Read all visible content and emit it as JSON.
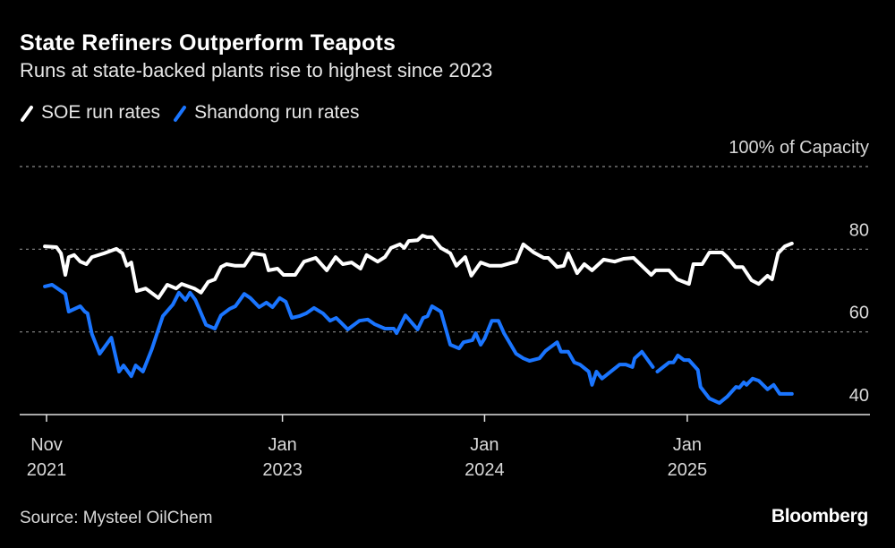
{
  "title": "State Refiners Outperform Teapots",
  "subtitle": "Runs at state-backed plants rise to highest since 2023",
  "source": "Source: Mysteel OilChem",
  "logo": "Bloomberg",
  "chart_data": {
    "type": "line",
    "title": "State Refiners Outperform Teapots",
    "ylabel": "100% of Capacity",
    "ylim": [
      40,
      100
    ],
    "y_ticks": [
      {
        "value": 100,
        "label": "100% of Capacity"
      },
      {
        "value": 80,
        "label": "80"
      },
      {
        "value": 60,
        "label": "60"
      },
      {
        "value": 40,
        "label": "40"
      }
    ],
    "x_ticks": [
      {
        "date": "2021-11-01",
        "line1": "Nov",
        "line2": "2021"
      },
      {
        "date": "2023-01-01",
        "line1": "Jan",
        "line2": "2023"
      },
      {
        "date": "2024-01-01",
        "line1": "Jan",
        "line2": "2024"
      },
      {
        "date": "2025-01-01",
        "line1": "Jan",
        "line2": "2025"
      }
    ],
    "xlim": [
      "2021-11-01",
      "2025-07-09"
    ],
    "grid": "horizontal dotted",
    "legend_position": "top-left",
    "series": [
      {
        "name": "SOE run rates",
        "color": "#ffffff",
        "points": [
          [
            "2021-10-29",
            80.7
          ],
          [
            "2021-11-19",
            80.5
          ],
          [
            "2021-11-27",
            79.0
          ],
          [
            "2021-12-05",
            73.8
          ],
          [
            "2021-12-11",
            78.1
          ],
          [
            "2021-12-21",
            78.6
          ],
          [
            "2022-01-01",
            77.0
          ],
          [
            "2022-01-12",
            76.4
          ],
          [
            "2022-01-22",
            78.1
          ],
          [
            "2022-02-13",
            79.0
          ],
          [
            "2022-03-07",
            80.1
          ],
          [
            "2022-03-18",
            79.0
          ],
          [
            "2022-03-26",
            76.0
          ],
          [
            "2022-04-03",
            76.8
          ],
          [
            "2022-04-13",
            69.9
          ],
          [
            "2022-04-29",
            70.5
          ],
          [
            "2022-05-22",
            68.2
          ],
          [
            "2022-06-07",
            71.4
          ],
          [
            "2022-06-23",
            70.5
          ],
          [
            "2022-07-03",
            71.6
          ],
          [
            "2022-07-26",
            70.5
          ],
          [
            "2022-08-07",
            69.5
          ],
          [
            "2022-08-20",
            72.1
          ],
          [
            "2022-09-01",
            72.7
          ],
          [
            "2022-09-12",
            75.7
          ],
          [
            "2022-09-22",
            76.4
          ],
          [
            "2022-10-08",
            76.0
          ],
          [
            "2022-10-24",
            76.0
          ],
          [
            "2022-11-08",
            79.0
          ],
          [
            "2022-11-29",
            78.6
          ],
          [
            "2022-12-07",
            74.9
          ],
          [
            "2022-12-23",
            75.3
          ],
          [
            "2023-01-03",
            73.8
          ],
          [
            "2023-01-24",
            73.8
          ],
          [
            "2023-02-09",
            77.0
          ],
          [
            "2023-03-02",
            77.9
          ],
          [
            "2023-03-22",
            74.9
          ],
          [
            "2023-04-07",
            78.1
          ],
          [
            "2023-04-20",
            76.4
          ],
          [
            "2023-05-06",
            76.8
          ],
          [
            "2023-05-22",
            75.3
          ],
          [
            "2023-06-02",
            78.6
          ],
          [
            "2023-06-22",
            77.0
          ],
          [
            "2023-07-05",
            78.1
          ],
          [
            "2023-07-16",
            80.3
          ],
          [
            "2023-08-01",
            81.2
          ],
          [
            "2023-08-09",
            80.3
          ],
          [
            "2023-08-17",
            82.0
          ],
          [
            "2023-09-02",
            82.2
          ],
          [
            "2023-09-11",
            83.3
          ],
          [
            "2023-09-19",
            82.9
          ],
          [
            "2023-09-28",
            82.9
          ],
          [
            "2023-10-14",
            80.3
          ],
          [
            "2023-10-31",
            79.0
          ],
          [
            "2023-11-11",
            76.0
          ],
          [
            "2023-11-27",
            78.1
          ],
          [
            "2023-12-08",
            73.6
          ],
          [
            "2023-12-25",
            76.8
          ],
          [
            "2024-01-10",
            76.0
          ],
          [
            "2024-01-31",
            76.0
          ],
          [
            "2024-02-27",
            77.0
          ],
          [
            "2024-03-11",
            81.2
          ],
          [
            "2024-03-30",
            79.2
          ],
          [
            "2024-04-17",
            77.9
          ],
          [
            "2024-04-25",
            77.9
          ],
          [
            "2024-05-11",
            75.7
          ],
          [
            "2024-05-23",
            76.0
          ],
          [
            "2024-05-31",
            79.0
          ],
          [
            "2024-06-16",
            74.2
          ],
          [
            "2024-06-29",
            76.4
          ],
          [
            "2024-07-13",
            74.9
          ],
          [
            "2024-08-03",
            77.5
          ],
          [
            "2024-08-23",
            77.0
          ],
          [
            "2024-09-08",
            77.7
          ],
          [
            "2024-09-26",
            77.9
          ],
          [
            "2024-10-28",
            73.8
          ],
          [
            "2024-11-05",
            74.9
          ],
          [
            "2024-11-29",
            74.9
          ],
          [
            "2024-12-14",
            72.7
          ],
          [
            "2025-01-04",
            71.6
          ],
          [
            "2025-01-12",
            76.4
          ],
          [
            "2025-01-28",
            76.4
          ],
          [
            "2025-02-10",
            79.2
          ],
          [
            "2025-03-05",
            79.2
          ],
          [
            "2025-03-14",
            78.1
          ],
          [
            "2025-03-29",
            75.7
          ],
          [
            "2025-04-11",
            75.7
          ],
          [
            "2025-04-27",
            72.5
          ],
          [
            "2025-05-10",
            71.6
          ],
          [
            "2025-05-26",
            73.6
          ],
          [
            "2025-06-03",
            72.7
          ],
          [
            "2025-06-14",
            79.0
          ],
          [
            "2025-06-26",
            80.7
          ],
          [
            "2025-07-09",
            81.4
          ]
        ]
      },
      {
        "name": "Shandong run rates",
        "color": "#1a75ff",
        "points": [
          [
            "2021-10-29",
            71.0
          ],
          [
            "2021-11-11",
            71.4
          ],
          [
            "2021-12-05",
            69.2
          ],
          [
            "2021-12-11",
            64.9
          ],
          [
            "2022-01-01",
            66.2
          ],
          [
            "2022-01-09",
            64.9
          ],
          [
            "2022-01-14",
            64.5
          ],
          [
            "2022-01-22",
            59.5
          ],
          [
            "2022-02-05",
            54.7
          ],
          [
            "2022-02-26",
            58.6
          ],
          [
            "2022-03-12",
            50.4
          ],
          [
            "2022-03-20",
            51.9
          ],
          [
            "2022-04-03",
            49.3
          ],
          [
            "2022-04-11",
            51.9
          ],
          [
            "2022-04-24",
            50.4
          ],
          [
            "2022-05-10",
            55.8
          ],
          [
            "2022-05-30",
            63.8
          ],
          [
            "2022-06-17",
            66.6
          ],
          [
            "2022-06-28",
            69.5
          ],
          [
            "2022-07-10",
            67.7
          ],
          [
            "2022-07-18",
            69.5
          ],
          [
            "2022-07-28",
            67.7
          ],
          [
            "2022-08-16",
            61.7
          ],
          [
            "2022-09-01",
            60.8
          ],
          [
            "2022-09-12",
            64.0
          ],
          [
            "2022-09-28",
            65.6
          ],
          [
            "2022-10-08",
            66.2
          ],
          [
            "2022-10-24",
            69.2
          ],
          [
            "2022-11-04",
            68.2
          ],
          [
            "2022-11-20",
            66.0
          ],
          [
            "2022-12-03",
            67.1
          ],
          [
            "2022-12-14",
            66.0
          ],
          [
            "2022-12-27",
            68.2
          ],
          [
            "2023-01-07",
            67.3
          ],
          [
            "2023-01-18",
            63.4
          ],
          [
            "2023-01-31",
            63.8
          ],
          [
            "2023-02-13",
            64.5
          ],
          [
            "2023-02-27",
            65.8
          ],
          [
            "2023-03-15",
            64.5
          ],
          [
            "2023-03-28",
            62.7
          ],
          [
            "2023-04-08",
            63.4
          ],
          [
            "2023-04-29",
            60.6
          ],
          [
            "2023-05-20",
            62.7
          ],
          [
            "2023-06-04",
            63.0
          ],
          [
            "2023-06-16",
            61.9
          ],
          [
            "2023-07-05",
            60.8
          ],
          [
            "2023-07-21",
            60.8
          ],
          [
            "2023-07-26",
            59.7
          ],
          [
            "2023-08-11",
            64.0
          ],
          [
            "2023-09-02",
            60.6
          ],
          [
            "2023-09-12",
            63.4
          ],
          [
            "2023-09-20",
            63.8
          ],
          [
            "2023-09-28",
            66.2
          ],
          [
            "2023-10-14",
            64.9
          ],
          [
            "2023-10-31",
            56.9
          ],
          [
            "2023-11-16",
            56.0
          ],
          [
            "2023-11-24",
            57.5
          ],
          [
            "2023-12-10",
            58.0
          ],
          [
            "2023-12-16",
            59.7
          ],
          [
            "2023-12-25",
            56.9
          ],
          [
            "2024-01-01",
            58.4
          ],
          [
            "2024-01-14",
            62.7
          ],
          [
            "2024-01-26",
            62.7
          ],
          [
            "2024-02-05",
            59.7
          ],
          [
            "2024-02-27",
            54.7
          ],
          [
            "2024-03-11",
            53.6
          ],
          [
            "2024-03-22",
            53.0
          ],
          [
            "2024-04-09",
            53.6
          ],
          [
            "2024-04-20",
            55.4
          ],
          [
            "2024-04-28",
            56.2
          ],
          [
            "2024-05-11",
            57.5
          ],
          [
            "2024-05-18",
            55.2
          ],
          [
            "2024-05-31",
            55.2
          ],
          [
            "2024-06-11",
            52.6
          ],
          [
            "2024-06-21",
            52.1
          ],
          [
            "2024-07-07",
            50.4
          ],
          [
            "2024-07-13",
            47.2
          ],
          [
            "2024-07-21",
            50.4
          ],
          [
            "2024-07-31",
            48.7
          ],
          [
            "2024-09-01",
            52.1
          ],
          [
            "2024-09-12",
            52.1
          ],
          [
            "2024-09-24",
            51.5
          ],
          [
            "2024-09-28",
            53.6
          ],
          [
            "2024-10-11",
            55.2
          ],
          [
            "2024-10-31",
            51.5
          ],
          [
            "2024-11-04",
            null
          ],
          [
            "2024-11-08",
            50.4
          ],
          [
            "2024-11-29",
            52.6
          ],
          [
            "2024-12-07",
            52.6
          ],
          [
            "2024-12-15",
            54.3
          ],
          [
            "2024-12-26",
            53.2
          ],
          [
            "2025-01-04",
            53.2
          ],
          [
            "2025-01-20",
            50.8
          ],
          [
            "2025-01-25",
            46.7
          ],
          [
            "2025-02-10",
            43.9
          ],
          [
            "2025-02-28",
            42.8
          ],
          [
            "2025-03-14",
            44.3
          ],
          [
            "2025-03-30",
            46.7
          ],
          [
            "2025-04-05",
            46.5
          ],
          [
            "2025-04-13",
            47.8
          ],
          [
            "2025-04-18",
            47.2
          ],
          [
            "2025-04-29",
            48.7
          ],
          [
            "2025-05-10",
            48.2
          ],
          [
            "2025-05-26",
            46.1
          ],
          [
            "2025-06-06",
            47.2
          ],
          [
            "2025-06-17",
            45.0
          ],
          [
            "2025-07-09",
            45.0
          ]
        ]
      }
    ]
  }
}
